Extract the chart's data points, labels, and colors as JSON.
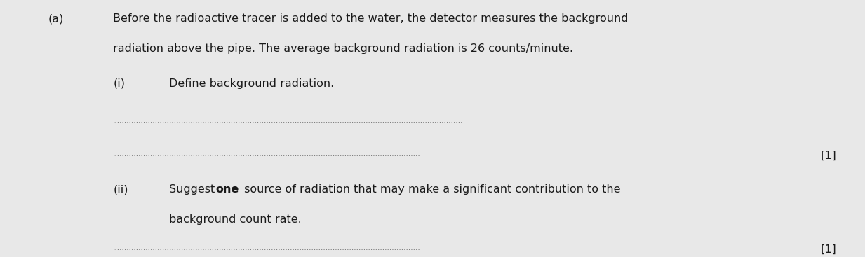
{
  "bg_color": "#e8e8e8",
  "text_color": "#1a1a1a",
  "part_a_label": "(a)",
  "part_a_text_line1": "Before the radioactive tracer is added to the water, the detector measures the background",
  "part_a_text_line2": "radiation above the pipe. The average background radiation is 26 counts/minute.",
  "part_i_label": "(i)",
  "part_i_text": "Define background radiation.",
  "part_ii_label": "(ii)",
  "part_ii_text_line1_pre_bold": "Suggest ",
  "part_ii_text_bold": "one",
  "part_ii_text_line1_post_bold": " source of radiation that may make a significant contribution to the",
  "part_ii_text_line2": "background count rate.",
  "mark_1": "[1]",
  "mark_2": "[1]",
  "font_size_main": 11.5,
  "font_size_dots": 7.5,
  "dot_color": "#666666",
  "num_dots_long": 148,
  "num_dots_short": 130
}
